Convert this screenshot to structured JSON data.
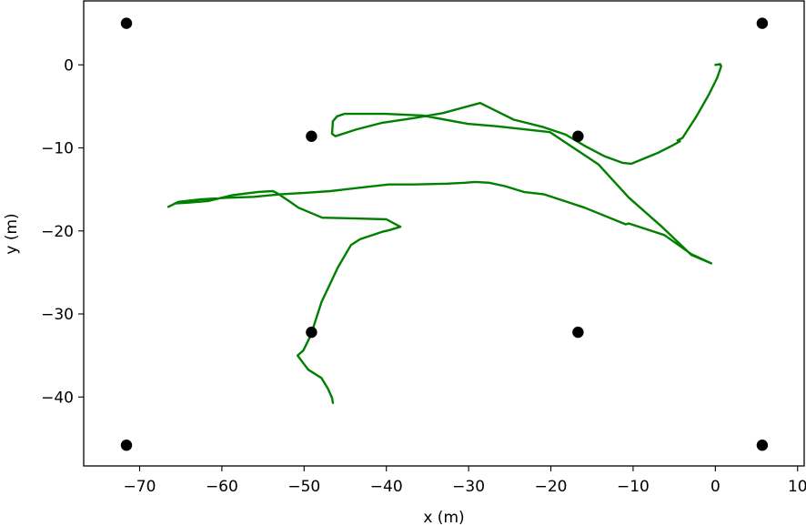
{
  "chart_data": {
    "type": "scatter",
    "title": "",
    "xlabel": "x (m)",
    "ylabel": "y (m)",
    "xlim": [
      -76.8,
      10.8
    ],
    "ylim": [
      -48.3,
      7.7
    ],
    "xticks": [
      -70,
      -60,
      -50,
      -40,
      -30,
      -20,
      -10,
      0,
      10
    ],
    "xtick_labels": [
      "−70",
      "−60",
      "−50",
      "−40",
      "−30",
      "−20",
      "−10",
      "0",
      "10"
    ],
    "yticks": [
      0,
      -10,
      -20,
      -30,
      -40
    ],
    "ytick_labels": [
      "0",
      "−10",
      "−20",
      "−30",
      "−40"
    ],
    "grid": false,
    "legend": "none",
    "series": [
      {
        "kind": "scatter",
        "color": "#000000",
        "x": [
          -71.6,
          5.7,
          -49.1,
          -16.7,
          -49.1,
          -16.7,
          -71.6,
          5.7
        ],
        "y": [
          5.0,
          5.0,
          -8.6,
          -8.6,
          -32.2,
          -32.2,
          -45.8,
          -45.8
        ]
      },
      {
        "kind": "line",
        "color": "#008000",
        "x": [
          0.0,
          0.6,
          0.7,
          0.2,
          -0.8,
          -2.3,
          -4.0,
          -4.6,
          -4.3,
          -5.2,
          -7.0,
          -10.2,
          -11.3,
          -13.5,
          -15.8,
          -18.2,
          -20.9,
          -24.5,
          -28.6,
          -33.1,
          -36.6,
          -40.6,
          -43.7,
          -46.2,
          -46.6,
          -46.5,
          -46.0,
          -45.1,
          -43.4,
          -40.2,
          -35.6,
          -30.1,
          -26.5,
          -20.1,
          -14.2,
          -10.5,
          -6.5,
          -2.9,
          -0.5,
          -2.9,
          -6.2,
          -10.5,
          -10.9,
          -15.9,
          -20.8,
          -23.3,
          -25.6,
          -27.5,
          -29.2,
          -30.4,
          -32.6,
          -36.6,
          -39.7,
          -43.3,
          -46.8,
          -49.7,
          -53.0,
          -56.1,
          -59.4,
          -62.6,
          -65.3,
          -66.5,
          -65.7,
          -64.1,
          -61.7,
          -58.7,
          -55.6,
          -53.8,
          -53.2,
          -51.7,
          -50.7,
          -47.8,
          -43.6,
          -40.0,
          -38.3,
          -39.6,
          -40.5,
          -43.2,
          -44.3,
          -45.9,
          -47.9,
          -49.2,
          -50.1,
          -50.8,
          -49.5,
          -47.9,
          -47.1,
          -46.6,
          -46.5
        ],
        "y": [
          0.0,
          0.1,
          -0.2,
          -1.6,
          -3.6,
          -6.2,
          -8.8,
          -9.1,
          -9.2,
          -9.7,
          -10.6,
          -11.9,
          -11.8,
          -11.0,
          -9.8,
          -8.4,
          -7.5,
          -6.6,
          -4.6,
          -5.8,
          -6.4,
          -7.0,
          -7.8,
          -8.6,
          -8.3,
          -6.8,
          -6.2,
          -5.9,
          -5.9,
          -5.9,
          -6.1,
          -7.1,
          -7.4,
          -8.1,
          -12.0,
          -16.0,
          -19.5,
          -22.9,
          -23.9,
          -22.8,
          -20.5,
          -19.1,
          -19.2,
          -17.2,
          -15.6,
          -15.3,
          -14.6,
          -14.2,
          -14.1,
          -14.2,
          -14.3,
          -14.4,
          -14.4,
          -14.8,
          -15.2,
          -15.4,
          -15.6,
          -15.9,
          -16.0,
          -16.2,
          -16.5,
          -17.1,
          -16.7,
          -16.6,
          -16.4,
          -15.7,
          -15.3,
          -15.2,
          -15.5,
          -16.5,
          -17.2,
          -18.4,
          -18.5,
          -18.6,
          -19.5,
          -19.9,
          -20.1,
          -21.0,
          -21.7,
          -24.4,
          -28.6,
          -32.6,
          -34.4,
          -35.0,
          -36.7,
          -37.7,
          -39.0,
          -40.1,
          -40.7
        ]
      }
    ]
  }
}
